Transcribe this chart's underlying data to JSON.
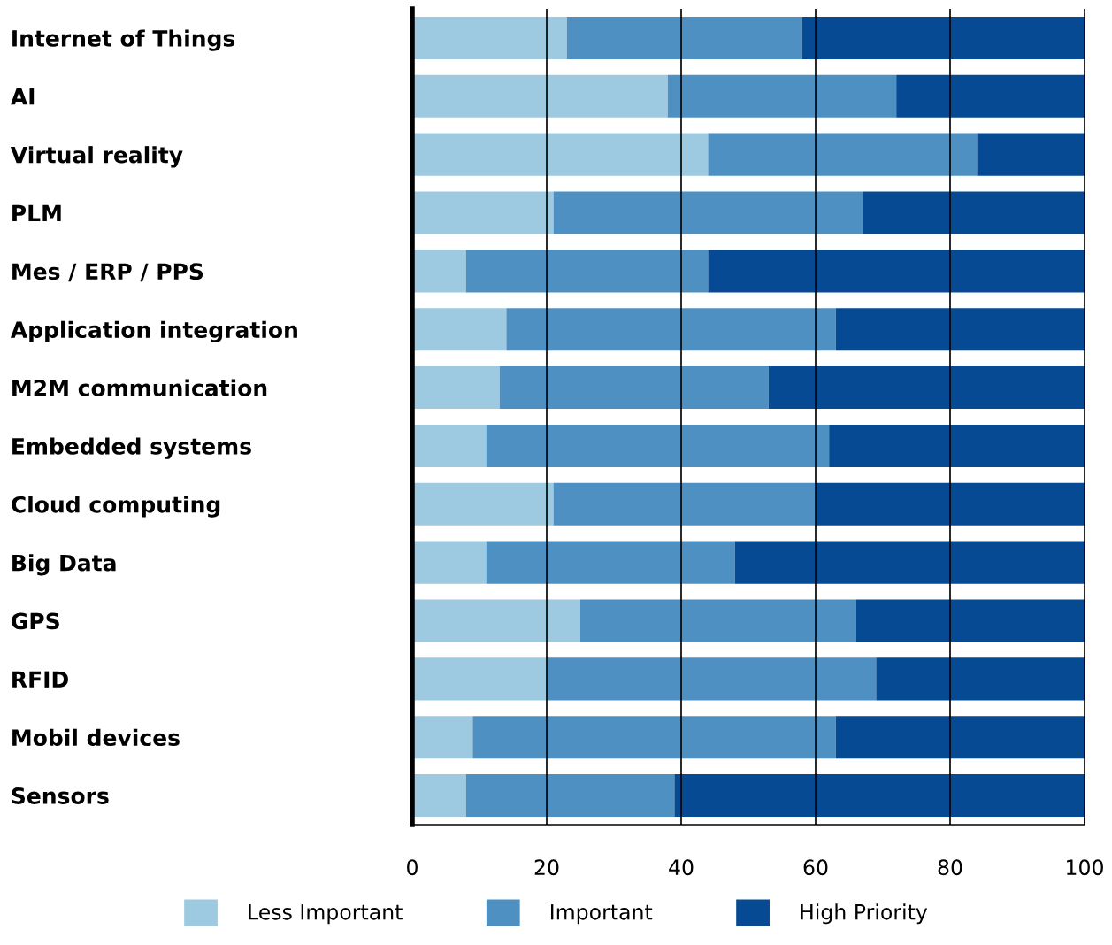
{
  "chart_data": {
    "type": "bar",
    "orientation": "horizontal",
    "stacked": true,
    "categories": [
      "Internet of Things",
      "AI",
      "Virtual reality",
      "PLM",
      "Mes / ERP / PPS",
      "Application integration",
      "M2M communication",
      "Embedded systems",
      "Cloud computing",
      "Big Data",
      "GPS",
      "RFID",
      "Mobil devices",
      "Sensors"
    ],
    "series": [
      {
        "name": "Less Important",
        "color": "#9ecae1",
        "values": [
          23,
          38,
          44,
          21,
          8,
          14,
          13,
          11,
          21,
          11,
          25,
          20,
          9,
          8
        ]
      },
      {
        "name": "Important",
        "color": "#4f90c3",
        "values": [
          35,
          34,
          40,
          46,
          36,
          49,
          40,
          51,
          39,
          37,
          41,
          49,
          54,
          31
        ]
      },
      {
        "name": "High Priority",
        "color": "#064a93",
        "values": [
          42,
          28,
          16,
          33,
          56,
          37,
          47,
          38,
          40,
          52,
          34,
          31,
          37,
          61
        ]
      }
    ],
    "xlim": [
      0,
      100
    ],
    "xticks": [
      0,
      20,
      40,
      60,
      80,
      100
    ],
    "grid": "x",
    "legend": "bottom"
  }
}
